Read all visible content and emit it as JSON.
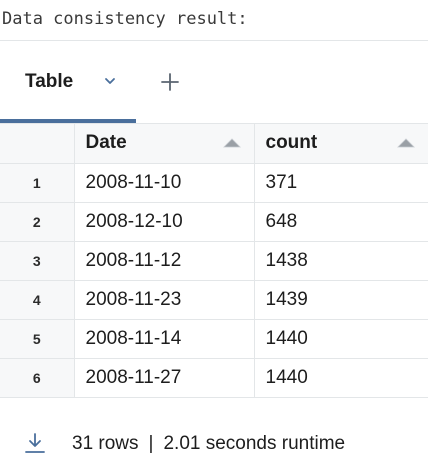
{
  "output": {
    "header_text": "Data consistency result:"
  },
  "tabs": {
    "active_label": "Table",
    "chevron_icon": "chevron-down-icon",
    "add_icon": "plus-icon"
  },
  "table": {
    "columns": [
      "Date",
      "count"
    ],
    "sort_icon": "sort-triangle-icon",
    "rows": [
      {
        "index": "1",
        "date": "2008-11-10",
        "count": "371"
      },
      {
        "index": "2",
        "date": "2008-12-10",
        "count": "648"
      },
      {
        "index": "3",
        "date": "2008-11-12",
        "count": "1438"
      },
      {
        "index": "4",
        "date": "2008-11-23",
        "count": "1439"
      },
      {
        "index": "5",
        "date": "2008-11-14",
        "count": "1440"
      },
      {
        "index": "6",
        "date": "2008-11-27",
        "count": "1440"
      }
    ]
  },
  "footer": {
    "download_icon": "download-icon",
    "rows_text": "31 rows",
    "separator": "|",
    "runtime_text": "2.01 seconds runtime"
  },
  "colors": {
    "tab_underline": "#4a6f9c",
    "header_bg": "#f7f8f9",
    "border": "#e3e6e8",
    "icon": "#4a6f9c"
  }
}
